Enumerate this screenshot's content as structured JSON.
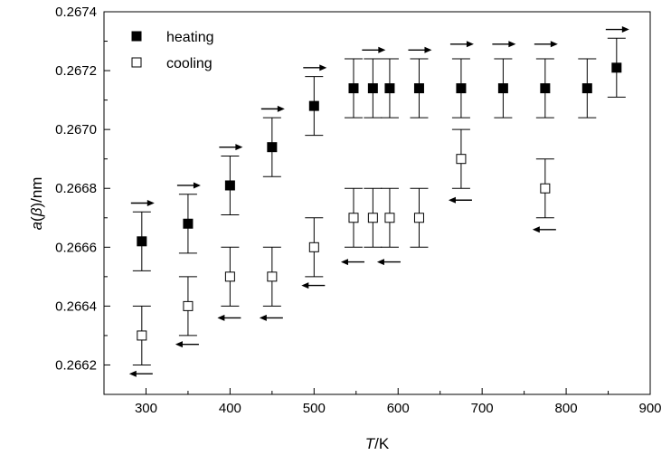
{
  "chart_data": {
    "type": "scatter",
    "xlabel_italic": "T",
    "xlabel_rest": "/K",
    "ylabel_parts": [
      "a",
      "(",
      "β",
      ")/nm"
    ],
    "xlim": [
      250,
      900
    ],
    "ylim": [
      0.2661,
      0.2674
    ],
    "x_ticks": [
      300,
      400,
      500,
      600,
      700,
      800,
      900
    ],
    "y_ticks": [
      0.2662,
      0.2664,
      0.2666,
      0.2668,
      0.267,
      0.2672,
      0.2674
    ],
    "y_tick_labels": [
      "0.2662",
      "0.2664",
      "0.2666",
      "0.2668",
      "0.2670",
      "0.2672",
      "0.2674"
    ],
    "legend_position": "top-left",
    "error_bar": 0.0001,
    "series": [
      {
        "name": "heating",
        "marker": "filled-square",
        "arrow": "right",
        "points": [
          {
            "x": 295,
            "y": 0.26662,
            "arrow_y": 0.26675
          },
          {
            "x": 350,
            "y": 0.26668,
            "arrow_y": 0.26681
          },
          {
            "x": 400,
            "y": 0.26681,
            "arrow_y": 0.26694
          },
          {
            "x": 450,
            "y": 0.26694,
            "arrow_y": 0.26707
          },
          {
            "x": 500,
            "y": 0.26708,
            "arrow_y": 0.26721
          },
          {
            "x": 547,
            "y": 0.26714,
            "arrow_y": null
          },
          {
            "x": 570,
            "y": 0.26714,
            "arrow_y": 0.26727
          },
          {
            "x": 590,
            "y": 0.26714,
            "arrow_y": null
          },
          {
            "x": 625,
            "y": 0.26714,
            "arrow_y": 0.26727
          },
          {
            "x": 675,
            "y": 0.26714,
            "arrow_y": 0.26729
          },
          {
            "x": 725,
            "y": 0.26714,
            "arrow_y": 0.26729
          },
          {
            "x": 775,
            "y": 0.26714,
            "arrow_y": 0.26729
          },
          {
            "x": 825,
            "y": 0.26714,
            "arrow_y": null
          },
          {
            "x": 860,
            "y": 0.26721,
            "arrow_y": 0.26734
          }
        ]
      },
      {
        "name": "cooling",
        "marker": "open-square",
        "arrow": "left",
        "points": [
          {
            "x": 295,
            "y": 0.2663,
            "arrow_y": 0.26617
          },
          {
            "x": 350,
            "y": 0.2664,
            "arrow_y": 0.26627
          },
          {
            "x": 400,
            "y": 0.2665,
            "arrow_y": 0.26636
          },
          {
            "x": 450,
            "y": 0.2665,
            "arrow_y": 0.26636
          },
          {
            "x": 500,
            "y": 0.2666,
            "arrow_y": 0.26647
          },
          {
            "x": 547,
            "y": 0.2667,
            "arrow_y": 0.26655
          },
          {
            "x": 570,
            "y": 0.2667,
            "arrow_y": null
          },
          {
            "x": 590,
            "y": 0.2667,
            "arrow_y": 0.26655
          },
          {
            "x": 625,
            "y": 0.2667,
            "arrow_y": null
          },
          {
            "x": 675,
            "y": 0.2669,
            "arrow_y": 0.26676
          },
          {
            "x": 775,
            "y": 0.2668,
            "arrow_y": 0.26666
          }
        ]
      }
    ]
  }
}
